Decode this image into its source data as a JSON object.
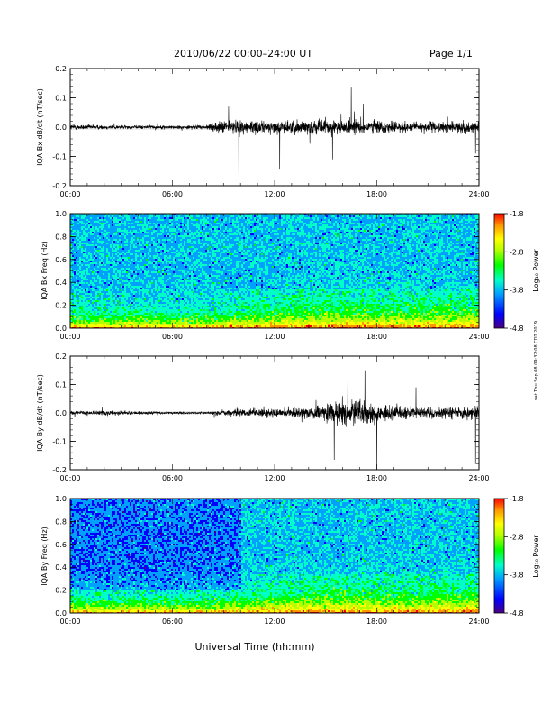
{
  "header": {
    "title": "2010/06/22  00:00–24:00 UT",
    "page": "Page 1/1",
    "stamp": "sat Thu Sep 08 09:32:08 CDT 2019"
  },
  "x_axis": {
    "label": "Universal Time (hh:mm)",
    "ticks": [
      "00:00",
      "06:00",
      "12:00",
      "18:00",
      "24:00"
    ]
  },
  "colorbar": {
    "label": "Log₁₀ Power",
    "ticks": [
      "-1.8",
      "-2.8",
      "-3.8",
      "-4.8"
    ],
    "colors": [
      "#4b0082",
      "#0000ff",
      "#00a0ff",
      "#00ffc8",
      "#00ff00",
      "#b4ff00",
      "#ffff00",
      "#ff9600",
      "#ff0000"
    ]
  },
  "chart_data": [
    {
      "type": "line",
      "ylabel": "IQA Bx dB/dt (nT/sec)",
      "xlim": [
        0,
        24
      ],
      "ylim": [
        -0.2,
        0.2
      ],
      "yticks": [
        "0.2",
        "0.1",
        "0.0",
        "-0.1",
        "-0.2"
      ],
      "envelope_hours": [
        0,
        2,
        4,
        6,
        8,
        9,
        10,
        12,
        14,
        16,
        18,
        20,
        22,
        24
      ],
      "envelope_amplitude": [
        0.02,
        0.015,
        0.012,
        0.012,
        0.015,
        0.045,
        0.05,
        0.04,
        0.05,
        0.05,
        0.045,
        0.035,
        0.035,
        0.04
      ],
      "spikes": [
        [
          9.9,
          -0.16
        ],
        [
          12.3,
          -0.145
        ],
        [
          16.5,
          0.135
        ],
        [
          9.3,
          0.07
        ],
        [
          15.4,
          -0.11
        ],
        [
          17.2,
          0.08
        ],
        [
          23.8,
          -0.09
        ]
      ]
    },
    {
      "type": "heatmap",
      "ylabel": "IQA Bx Freq (Hz)",
      "xlim": [
        0,
        24
      ],
      "ylim": [
        0.0,
        1.0
      ],
      "yticks": [
        "1.0",
        "0.8",
        "0.6",
        "0.4",
        "0.2",
        "0.0"
      ],
      "zlim": [
        -4.8,
        -1.8
      ]
    },
    {
      "type": "line",
      "ylabel": "IQA By dB/dt (nT/sec)",
      "xlim": [
        0,
        24
      ],
      "ylim": [
        -0.2,
        0.2
      ],
      "yticks": [
        "0.2",
        "0.1",
        "0.0",
        "-0.1",
        "-0.2"
      ],
      "envelope_hours": [
        0,
        2,
        4,
        6,
        8,
        9,
        10,
        12,
        14,
        15,
        16,
        17,
        18,
        20,
        22,
        24
      ],
      "envelope_amplitude": [
        0.012,
        0.018,
        0.01,
        0.007,
        0.008,
        0.02,
        0.025,
        0.03,
        0.04,
        0.065,
        0.09,
        0.085,
        0.06,
        0.04,
        0.04,
        0.045
      ],
      "spikes": [
        [
          18.0,
          0.2
        ],
        [
          15.5,
          -0.165
        ],
        [
          18.0,
          -0.2
        ],
        [
          16.3,
          0.14
        ],
        [
          17.3,
          0.15
        ],
        [
          23.8,
          -0.18
        ],
        [
          20.3,
          0.09
        ]
      ]
    },
    {
      "type": "heatmap",
      "ylabel": "IQA By Freq (Hz)",
      "xlim": [
        0,
        24
      ],
      "ylim": [
        0.0,
        1.0
      ],
      "yticks": [
        "1.0",
        "0.8",
        "0.6",
        "0.4",
        "0.2",
        "0.0"
      ],
      "zlim": [
        -4.8,
        -1.8
      ]
    }
  ]
}
